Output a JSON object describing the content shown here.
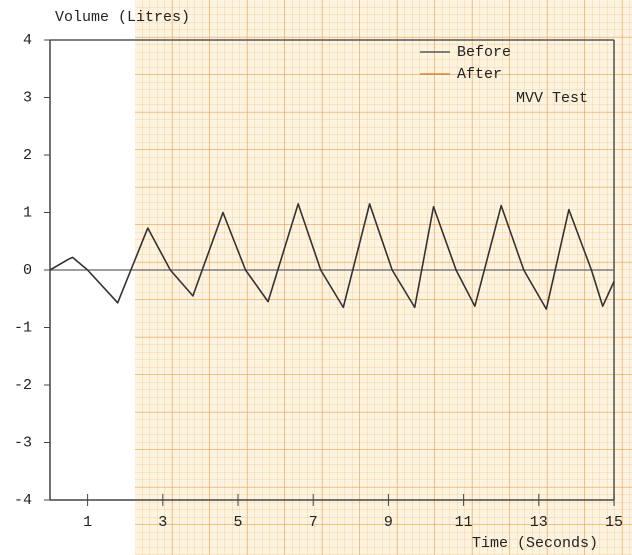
{
  "chart_data": {
    "type": "line",
    "y_label": "Volume (Litres)",
    "x_label": "Time (Seconds)",
    "annotation": "MVV Test",
    "legend": [
      {
        "label": "Before",
        "color": "#555555"
      },
      {
        "label": "After",
        "color": "#d98a3a"
      }
    ],
    "x": [
      0,
      0.5,
      0.6,
      1.0,
      1.8,
      2.6,
      3.2,
      3.8,
      4.6,
      5.2,
      5.8,
      6.6,
      7.2,
      7.8,
      8.5,
      9.1,
      9.7,
      10.2,
      10.8,
      11.3,
      12.0,
      12.6,
      13.2,
      13.8,
      14.4,
      14.7,
      15
    ],
    "series": [
      {
        "color": "#333333",
        "values": [
          0,
          0.19,
          0.22,
          0,
          -0.57,
          0.73,
          0,
          -0.45,
          1.0,
          0,
          -0.55,
          1.15,
          0,
          -0.65,
          1.15,
          0,
          -0.65,
          1.1,
          0,
          -0.63,
          1.12,
          0,
          -0.68,
          1.05,
          0,
          -0.63,
          -0.2
        ]
      }
    ],
    "xlim": [
      0,
      15
    ],
    "xticks": [
      1,
      3,
      5,
      7,
      9,
      11,
      13,
      15
    ],
    "ylim": [
      -4,
      4
    ],
    "yticks": [
      -4,
      -3,
      -2,
      -1,
      0,
      1,
      2,
      3,
      4
    ]
  }
}
